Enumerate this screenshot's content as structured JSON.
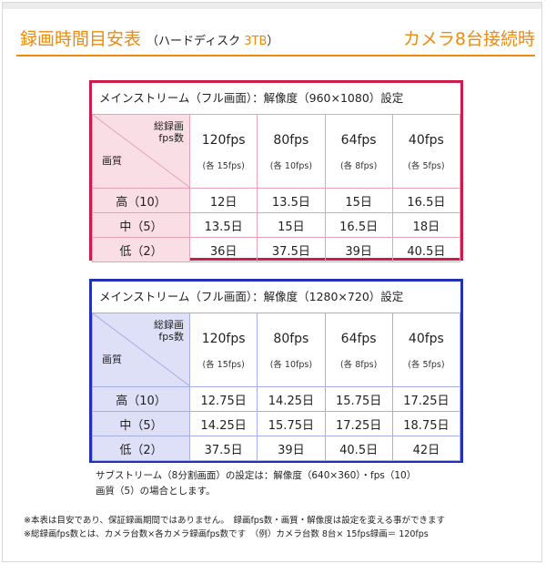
{
  "header": {
    "title": "録画時間目安表",
    "subtitle_prefix": "（ハードディスク",
    "subtitle_capacity": "3TB",
    "subtitle_suffix": "）",
    "cameras": "カメラ8台接続時"
  },
  "colors": {
    "accent": "#ee8a0c",
    "red_border": "#cc1c4b",
    "blue_border": "#2331b8"
  },
  "corner": {
    "top_line1": "総録画",
    "top_line2": "fps数",
    "bottom": "画質"
  },
  "columns": [
    {
      "fps": "120fps",
      "each": "(各 15fps)"
    },
    {
      "fps": "80fps",
      "each": "(各 10fps)"
    },
    {
      "fps": "64fps",
      "each": "(各 8fps)"
    },
    {
      "fps": "40fps",
      "each": "(各 5fps)"
    }
  ],
  "tables": [
    {
      "title": "メインストリーム（フル画面）：解像度（960×1080）設定",
      "rows": [
        {
          "quality": "高（10）",
          "cells": [
            "12日",
            "13.5日",
            "15日",
            "16.5日"
          ]
        },
        {
          "quality": "中（5）",
          "cells": [
            "13.5日",
            "15日",
            "16.5日",
            "18日"
          ]
        },
        {
          "quality": "低（2）",
          "cells": [
            "36日",
            "37.5日",
            "39日",
            "40.5日"
          ]
        }
      ]
    },
    {
      "title": "メインストリーム（フル画面）：解像度（1280×720）設定",
      "rows": [
        {
          "quality": "高（10）",
          "cells": [
            "12.75日",
            "14.25日",
            "15.75日",
            "17.25日"
          ]
        },
        {
          "quality": "中（5）",
          "cells": [
            "14.25日",
            "15.75日",
            "17.25日",
            "18.75日"
          ]
        },
        {
          "quality": "低（2）",
          "cells": [
            "37.5日",
            "39日",
            "40.5日",
            "42日"
          ]
        }
      ]
    }
  ],
  "note": {
    "line1": "サブストリーム（8分割画面）の設定は：解像度（640×360）・fps（10）",
    "line2": "画質（5）の場合とします。"
  },
  "footnotes": [
    "※本表は目安であり、保証録画期間ではありません。　録画fps数・画質・解像度は設定を変える事ができます",
    "※総録画fps数とは、カメラ台数×各カメラ録画fps数です　（例）カメラ台数 8台× 15fps録画＝ 120fps"
  ]
}
